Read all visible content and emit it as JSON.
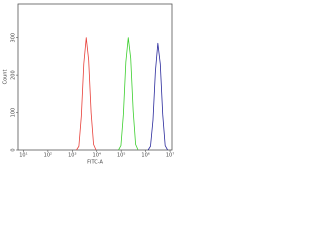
{
  "chart_data": {
    "type": "line",
    "x_label": "FITC-A",
    "y_label": "Count",
    "xlog": true,
    "xlim": [
      6,
      12000000
    ],
    "ylim": [
      0,
      390
    ],
    "xticks": [
      {
        "value": 10,
        "label": "10¹"
      },
      {
        "value": 100,
        "label": "10²"
      },
      {
        "value": 1000,
        "label": "10³"
      },
      {
        "value": 10000,
        "label": "10⁴"
      },
      {
        "value": 100000,
        "label": "10⁵"
      },
      {
        "value": 1000000,
        "label": "10⁶"
      },
      {
        "value": 10000000,
        "label": "10⁷"
      }
    ],
    "yticks": [
      0,
      100,
      200,
      300
    ],
    "series": [
      {
        "color": "#e8403a",
        "x": [
          1480,
          1860,
          2340,
          2950,
          3720,
          4680,
          5890,
          7410,
          9330
        ],
        "values": [
          0,
          10,
          90,
          230,
          300,
          240,
          100,
          15,
          0
        ]
      },
      {
        "color": "#3ccf2e",
        "x": [
          77600,
          97700,
          123000,
          155000,
          195000,
          245000,
          309000,
          389000,
          490000
        ],
        "values": [
          0,
          12,
          95,
          235,
          300,
          245,
          105,
          15,
          0
        ]
      },
      {
        "color": "#2a2a9c",
        "x": [
          1260000,
          1580000,
          2000000,
          2510000,
          3160000,
          3980000,
          5010000,
          6310000,
          7940000
        ],
        "values": [
          0,
          10,
          80,
          210,
          285,
          230,
          95,
          12,
          0
        ]
      }
    ]
  }
}
